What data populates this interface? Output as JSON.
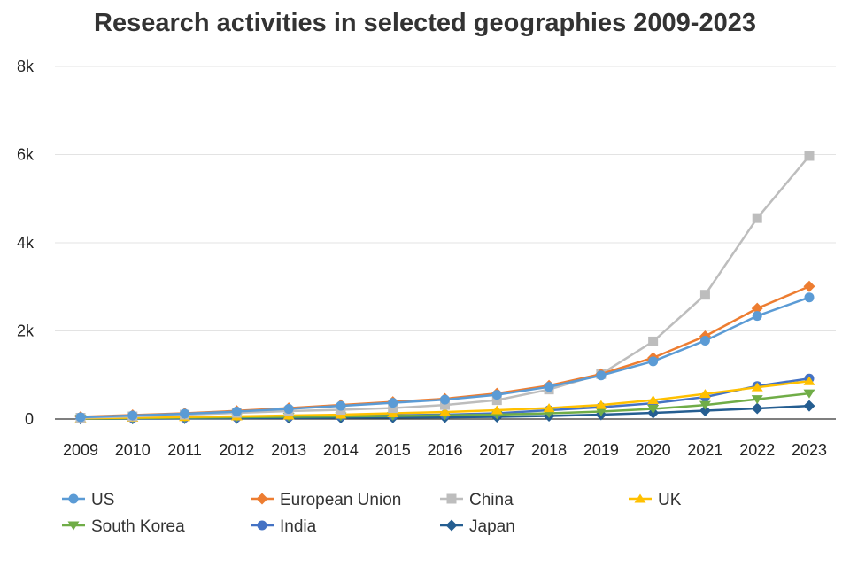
{
  "chart_data": {
    "type": "line",
    "title": "Research activities in selected geographies 2009-2023",
    "xlabel": "",
    "ylabel": "",
    "ylim": [
      0,
      8000
    ],
    "y_ticks": [
      0,
      2000,
      4000,
      6000,
      8000
    ],
    "y_tick_labels": [
      "0",
      "2k",
      "4k",
      "6k",
      "8k"
    ],
    "categories": [
      "2009",
      "2010",
      "2011",
      "2012",
      "2013",
      "2014",
      "2015",
      "2016",
      "2017",
      "2018",
      "2019",
      "2020",
      "2021",
      "2022",
      "2023"
    ],
    "grid": true,
    "legend_position": "bottom",
    "series": [
      {
        "name": "US",
        "color": "#5b9bd5",
        "marker": "circle",
        "values": [
          40,
          80,
          120,
          170,
          230,
          300,
          370,
          440,
          550,
          730,
          990,
          1310,
          1780,
          2340,
          2760
        ]
      },
      {
        "name": "European Union",
        "color": "#ed7d31",
        "marker": "diamond",
        "values": [
          50,
          90,
          130,
          185,
          250,
          320,
          390,
          460,
          580,
          760,
          1020,
          1390,
          1880,
          2510,
          3010
        ]
      },
      {
        "name": "China",
        "color": "#bdbdbd",
        "marker": "square",
        "values": [
          30,
          60,
          100,
          140,
          180,
          210,
          250,
          320,
          430,
          670,
          1020,
          1760,
          2820,
          4560,
          5970
        ]
      },
      {
        "name": "UK",
        "color": "#ffc000",
        "marker": "triangle-up",
        "values": [
          15,
          30,
          45,
          60,
          80,
          100,
          130,
          160,
          200,
          250,
          320,
          430,
          570,
          720,
          860
        ]
      },
      {
        "name": "South Korea",
        "color": "#70ad47",
        "marker": "triangle-down",
        "values": [
          10,
          20,
          30,
          40,
          50,
          60,
          70,
          85,
          100,
          130,
          170,
          230,
          320,
          450,
          580
        ]
      },
      {
        "name": "India",
        "color": "#4472c4",
        "marker": "circle",
        "values": [
          10,
          20,
          30,
          40,
          55,
          70,
          85,
          100,
          130,
          200,
          270,
          360,
          500,
          750,
          920
        ]
      },
      {
        "name": "Japan",
        "color": "#255e91",
        "marker": "diamond",
        "values": [
          5,
          10,
          15,
          20,
          25,
          30,
          35,
          40,
          50,
          70,
          100,
          140,
          190,
          240,
          300
        ]
      }
    ]
  }
}
